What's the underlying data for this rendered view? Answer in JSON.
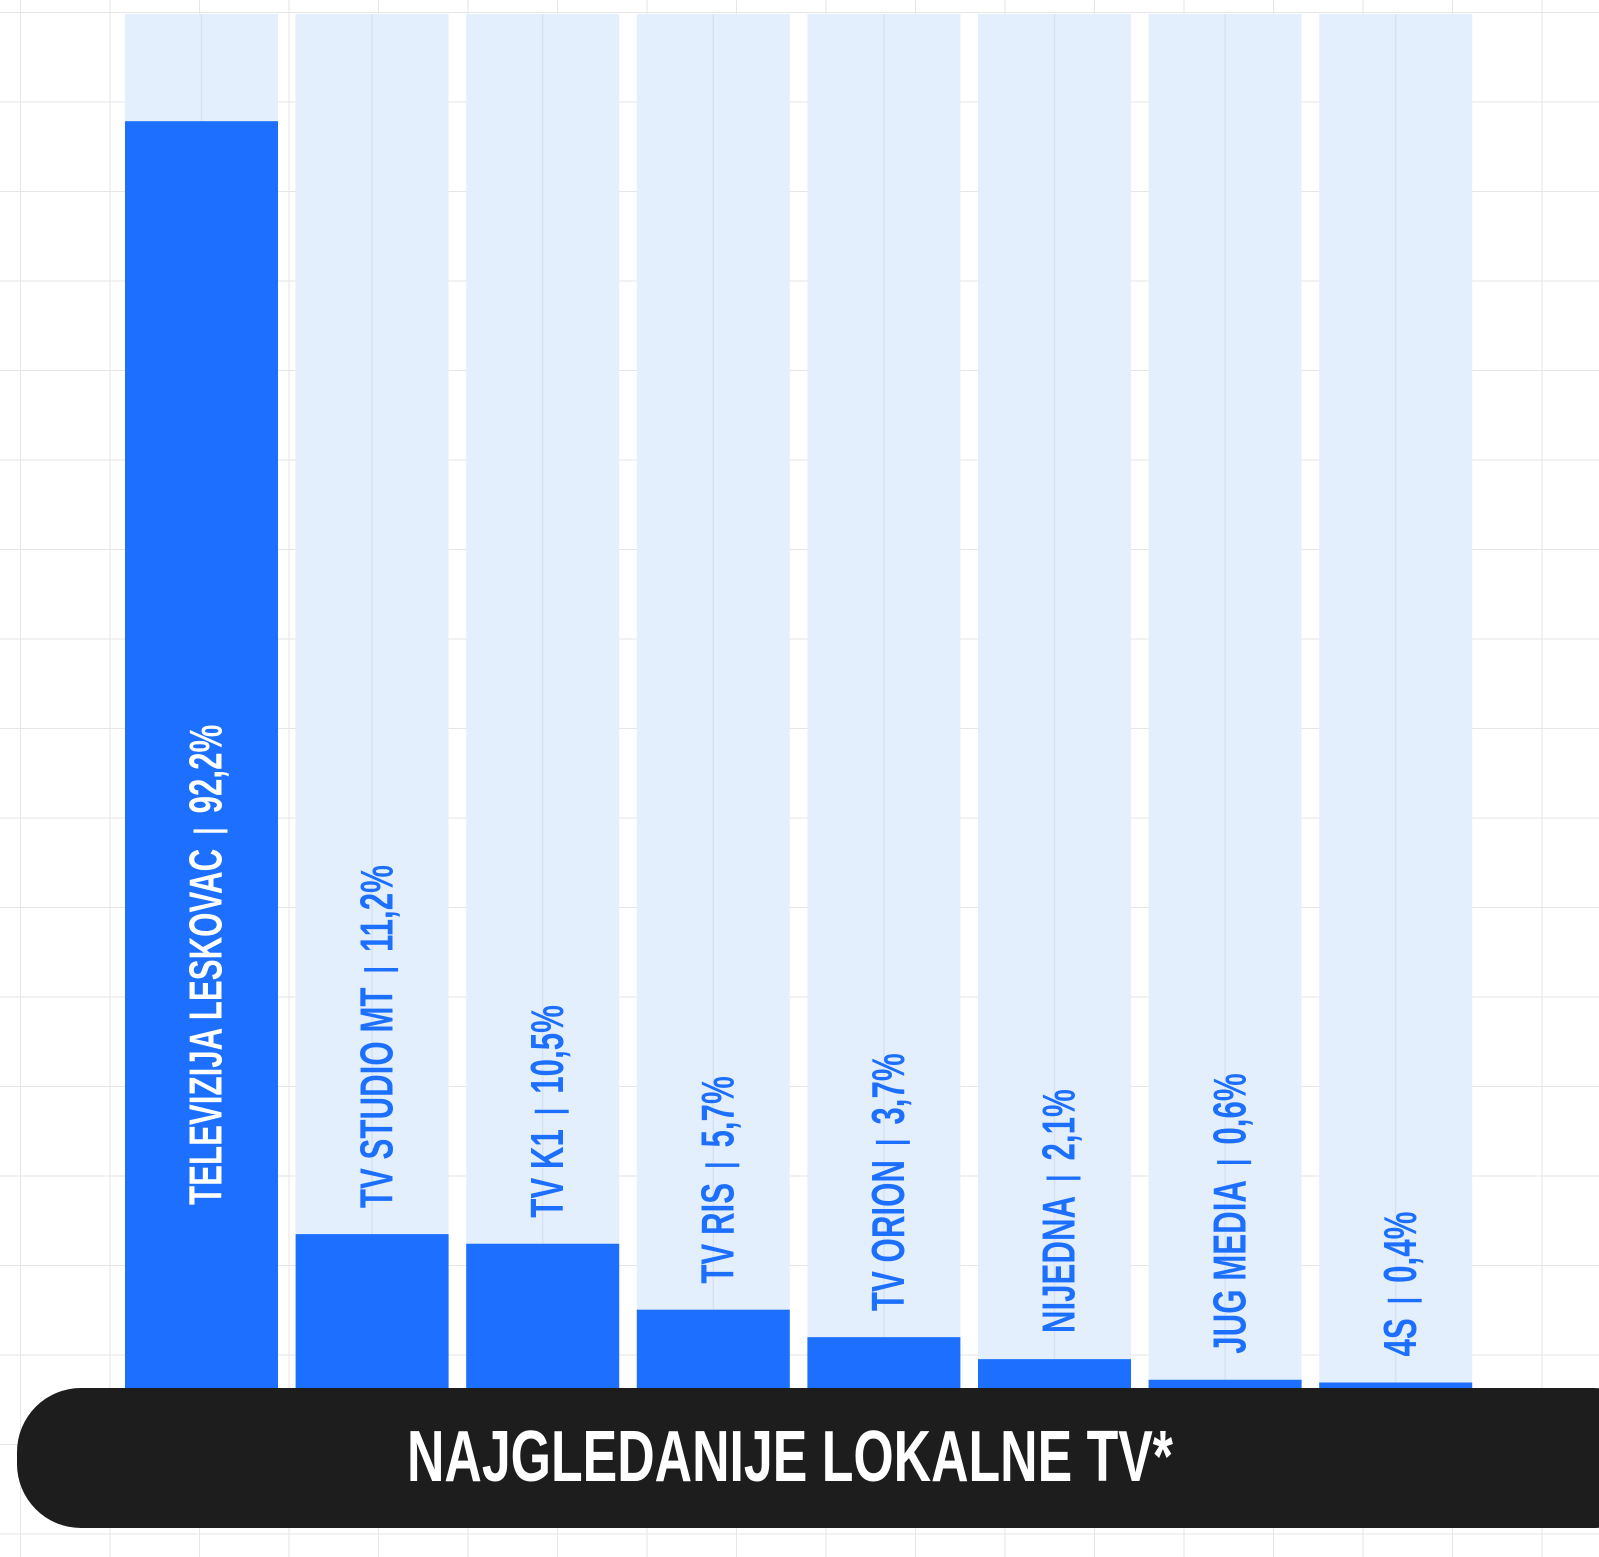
{
  "chart_data": {
    "type": "bar",
    "title": "NAJGLEDANIJE LOKALNE TV*",
    "categories": [
      "TELEVIZIJA LESKOVAC",
      "TV STUDIO MT",
      "TV K1",
      "TV RIS",
      "TV ORION",
      "NIJEDNA",
      "JUG MEDIA",
      "4S"
    ],
    "values": [
      92.2,
      11.2,
      10.5,
      5.7,
      3.7,
      2.1,
      0.6,
      0.4
    ],
    "value_labels": [
      "92,2%",
      "11,2%",
      "10,5%",
      "5,7%",
      "3,7%",
      "2,1%",
      "0,6%",
      "0,4%"
    ],
    "color": "#1c6fff",
    "ylim": [
      0,
      100
    ]
  }
}
